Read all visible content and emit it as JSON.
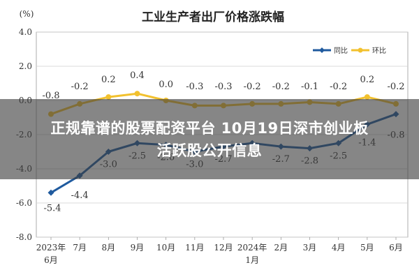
{
  "chart_data": {
    "type": "line",
    "title": "工业生产者出厂价格涨跌幅",
    "unit_label": "(%)",
    "ylim": [
      -8.0,
      4.0
    ],
    "yticks": [
      "4.0",
      "2.0",
      "0.0",
      "-2.0",
      "-4.0",
      "-6.0",
      "-8.0"
    ],
    "categories": [
      [
        "2023年",
        "6月"
      ],
      [
        "7月"
      ],
      [
        "8月"
      ],
      [
        "9月"
      ],
      [
        "10月"
      ],
      [
        "11月"
      ],
      [
        "12月"
      ],
      [
        "2024年",
        "1月"
      ],
      [
        "2月"
      ],
      [
        "3月"
      ],
      [
        "4月"
      ],
      [
        "5月"
      ],
      [
        "6月"
      ]
    ],
    "series": [
      {
        "name": "同比",
        "color": "#1f5a9e",
        "values": [
          -5.4,
          -4.4,
          -3.0,
          -2.5,
          -2.6,
          -3.0,
          -2.7,
          -2.5,
          -2.7,
          -2.8,
          -2.5,
          -1.4,
          -0.8
        ],
        "labels": [
          "-5.4",
          "-4.4",
          "-3.0",
          "-2.5",
          "-2.6",
          "-3.0",
          "-2.7",
          "",
          "-2.7",
          "-2.8",
          "-2.5",
          "-1.4",
          "-0.8"
        ]
      },
      {
        "name": "环比",
        "color": "#f2c12e",
        "values": [
          -0.8,
          -0.2,
          0.2,
          0.4,
          0.0,
          -0.3,
          -0.3,
          -0.2,
          -0.2,
          -0.1,
          -0.2,
          0.2,
          -0.2
        ],
        "labels": [
          "-0.8",
          "-0.2",
          "0.2",
          "0.4",
          "0.0",
          "-0.3",
          "-0.3",
          "-0.2",
          "-0.2",
          "-0.1",
          "-0.2",
          "0.2",
          "-0.2"
        ]
      }
    ],
    "grid": true,
    "legend": "top-right"
  },
  "overlay": {
    "line1": "正规靠谱的股票配资平台 10月19日深市创业板",
    "line2": "活跃股公开信息"
  }
}
